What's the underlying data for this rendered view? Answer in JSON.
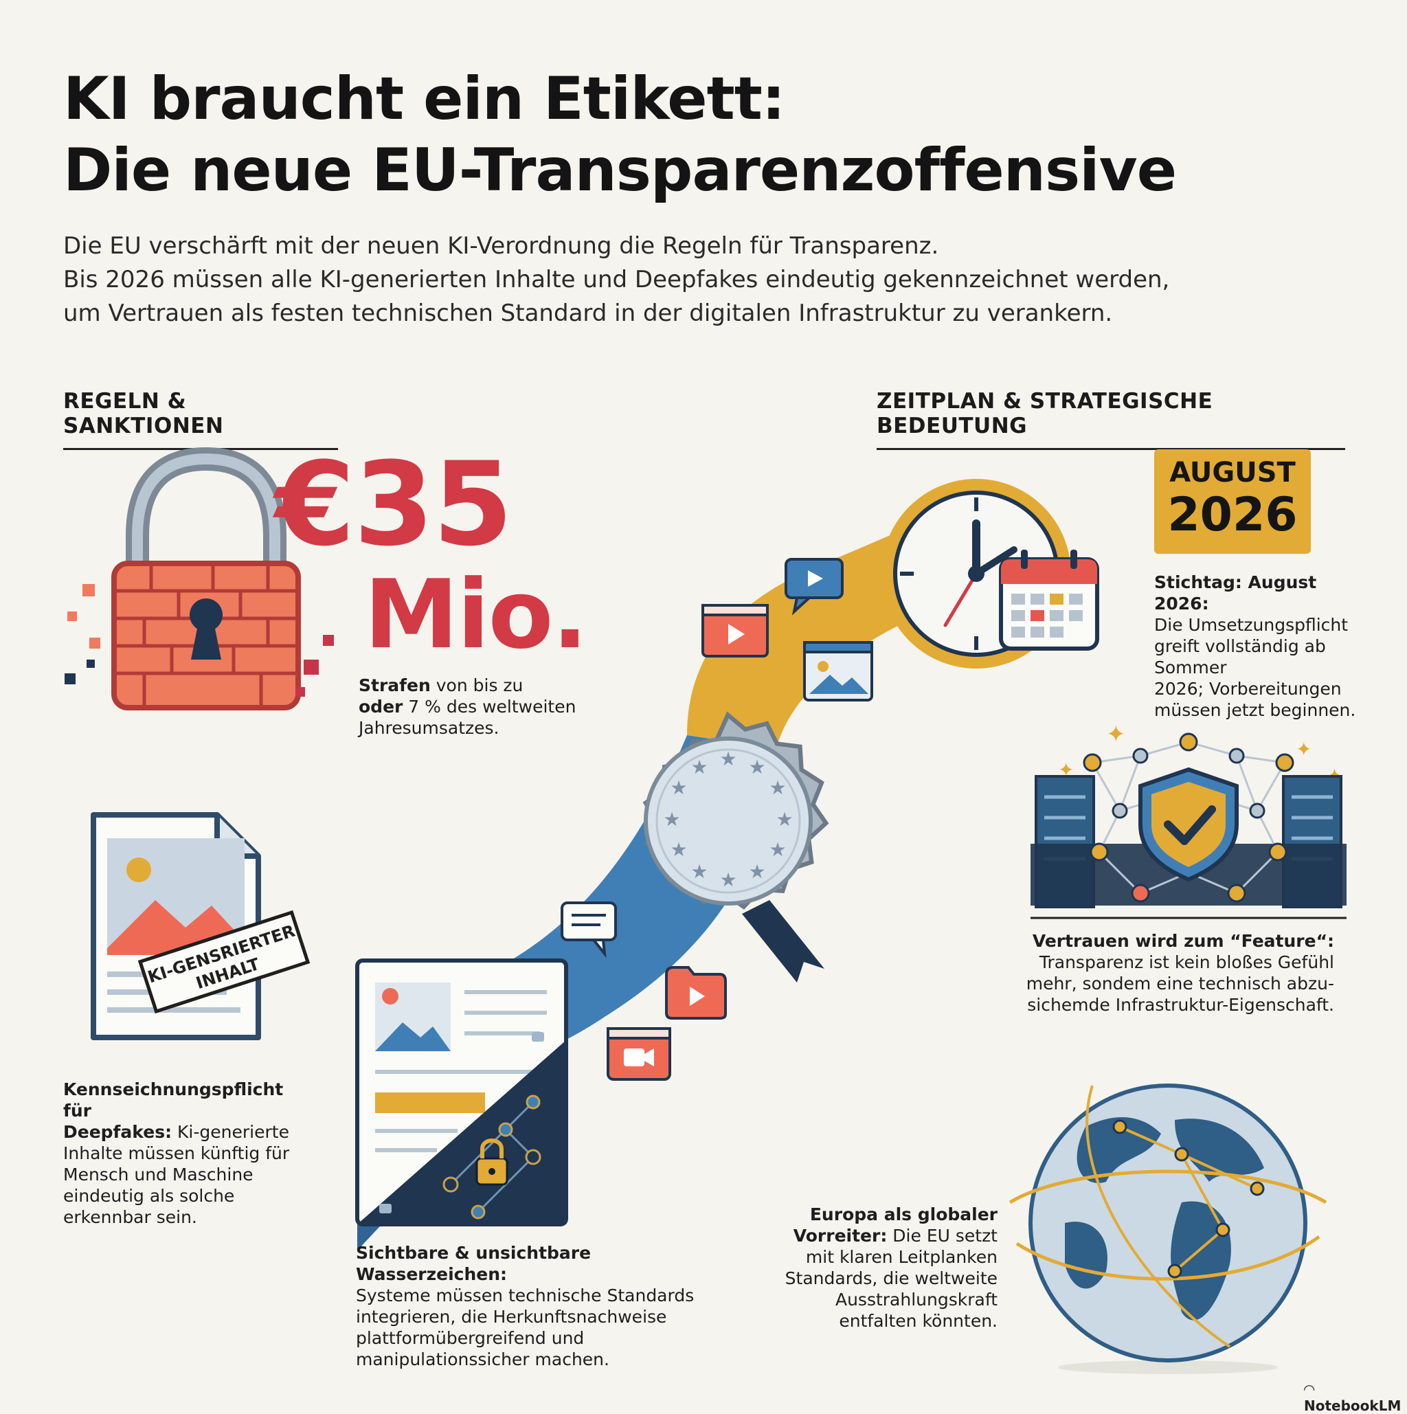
{
  "header": {
    "title_line1": "KI braucht ein Etikett:",
    "title_line2": "Die neue EU-Transparenzoffensive",
    "intro_line1": "Die EU verschärft mit der neuen KI-Verordnung die Regeln für Transparenz.",
    "intro_line2": "Bis 2026 müssen alle KI-generierten Inhalte und Deepfakes eindeutig gekennzeichnet werden,",
    "intro_line3": "um Vertrauen als festen technischen Standard in der digitalen Infrastruktur zu verankern."
  },
  "sections": {
    "left": "REGELN & SANKTIONEN",
    "right": "ZEITPLAN & STRATEGISCHE BEDEUTUNG"
  },
  "fine": {
    "amount": "€35",
    "unit": "Mio.",
    "caption_bold": "Strafen",
    "caption_line1_rest": " von bis zu",
    "caption_line2_bold": "oder",
    "caption_line2_rest": " 7 % des weltweiten",
    "caption_line3": "Jahresumsatzes."
  },
  "deadline": {
    "badge_month": "AUGUST",
    "badge_year": "2026",
    "caption_bold": "Stichtag: August 2026:",
    "caption_line2": "Die Umsetzungspflicht",
    "caption_line3": "greift vollständig ab Sommer",
    "caption_line4": "2026; Vorbereitungen",
    "caption_line5": "müssen jetzt beginnen."
  },
  "trust": {
    "caption_bold": "Vertrauen wird zum “Feature“:",
    "caption_line2": "Transparenz ist kein bloßes Gefühl",
    "caption_line3": "mehr, sondem eine technisch abzu-",
    "caption_line4": "sichemde Infrastruktur-Eigenschaft."
  },
  "label": {
    "stamp_line1": "KI-GENSRIERTER",
    "stamp_line2": "INHALT",
    "caption_bold1": "Kennseichnungspflicht für",
    "caption_bold2": "Deepfakes:",
    "caption_line2_rest": " Ki-generierte",
    "caption_line3": "Inhalte müssen künftig für",
    "caption_line4": "Mensch und Maschine",
    "caption_line5": "eindeutig als solche",
    "caption_line6": "erkennbar sein."
  },
  "watermarks": {
    "caption_bold": "Sichtbare & unsichtbare Wasserzeichen:",
    "caption_line2": "Systeme müssen technische Standards",
    "caption_line3": "integrieren, die Herkunftsnachweise",
    "caption_line4": "plattformübergreifend und",
    "caption_line5": "manipulationssicher machen."
  },
  "europe": {
    "caption_bold1": "Europa als globaler",
    "caption_bold2": "Vorreiter:",
    "caption_line2_rest": " Die EU setzt",
    "caption_line3": "mit klaren Leitplanken",
    "caption_line4": "Standards, die weltweite",
    "caption_line5": "Ausstrahlungskraft",
    "caption_line6": "entfalten könnten."
  },
  "footer": {
    "watermark": "NotebookLM"
  },
  "icons": [
    "padlock-icon",
    "clock-icon",
    "calendar-icon",
    "eu-seal-icon",
    "document-icon",
    "shield-network-icon",
    "globe-icon",
    "video-icon",
    "image-icon",
    "chat-icon"
  ],
  "colors": {
    "accent_red": "#d23a45",
    "accent_gold": "#e2ab35",
    "accent_blue": "#3f7fb5",
    "navy": "#1f3550"
  }
}
